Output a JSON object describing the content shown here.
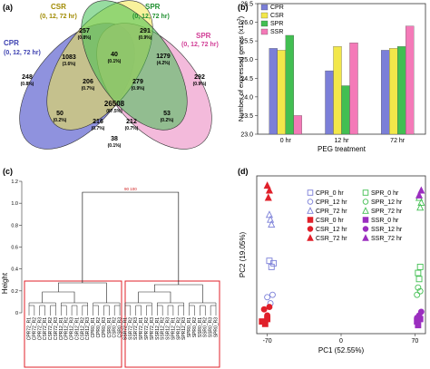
{
  "colors": {
    "cpr": "#7b7fd8",
    "csr": "#f2e74a",
    "spr": "#42bf52",
    "ssr": "#f47ab8",
    "red": "#e0202a",
    "purple": "#9b2fbf"
  },
  "panel_a": {
    "label": "(a)",
    "sets": [
      {
        "name": "CPR",
        "sub": "(0, 12, 72 hr)"
      },
      {
        "name": "CSR",
        "sub": "(0, 12, 72 hr)"
      },
      {
        "name": "SPR",
        "sub": "(0, 12, 72 hr)"
      },
      {
        "name": "SPR",
        "sub": "(0, 12, 72 hr)"
      }
    ],
    "regions": [
      {
        "n": "248",
        "p": "(0.8%)"
      },
      {
        "n": "1083",
        "p": "(3.6%)"
      },
      {
        "n": "257",
        "p": "(0.8%)"
      },
      {
        "n": "40",
        "p": "(0.1%)"
      },
      {
        "n": "291",
        "p": "(0.9%)"
      },
      {
        "n": "1279",
        "p": "(4.2%)"
      },
      {
        "n": "292",
        "p": "(0.9%)"
      },
      {
        "n": "206",
        "p": "(0.7%)"
      },
      {
        "n": "279",
        "p": "(0.9%)"
      },
      {
        "n": "26508",
        "p": "(87.5%)"
      },
      {
        "n": "50",
        "p": "(0.2%)"
      },
      {
        "n": "216",
        "p": "(0.7%)"
      },
      {
        "n": "212",
        "p": "(0.7%)"
      },
      {
        "n": "53",
        "p": "(0.2%)"
      },
      {
        "n": "38",
        "p": "(0.1%)"
      }
    ]
  },
  "panel_b": {
    "label": "(b)"
  },
  "panel_c": {
    "label": "(c)"
  },
  "panel_d": {
    "label": "(d)"
  },
  "chart_data": [
    {
      "type": "bar",
      "title": "",
      "xlabel": "PEG treatment",
      "ylabel": "Number of expressed genes (x10³)",
      "ylabel_main": "Number of expressed genes (x10",
      "ylabel_sup": "3",
      "ylabel_end": ")",
      "categories": [
        "0 hr",
        "12 hr",
        "72 hr"
      ],
      "series": [
        {
          "name": "CPR",
          "values": [
            25.3,
            24.7,
            25.25
          ]
        },
        {
          "name": "CSR",
          "values": [
            25.25,
            25.35,
            25.3
          ]
        },
        {
          "name": "SPR",
          "values": [
            25.65,
            24.3,
            25.35
          ]
        },
        {
          "name": "SSR",
          "values": [
            23.5,
            25.45,
            25.9
          ]
        }
      ],
      "ylim": [
        23.0,
        26.5
      ],
      "yticks": [
        "23.0",
        "23.5",
        "24.0",
        "24.5",
        "25.0",
        "25.5",
        "26.0",
        "26.5"
      ],
      "legend": "top-left"
    },
    {
      "type": "dendrogram",
      "ylabel": "Height",
      "ylim": [
        0,
        1.2
      ],
      "yticks": [
        "0",
        "0.2",
        "0.4",
        "0.6",
        "0.8",
        "1.0",
        "1.2"
      ],
      "root_label": "90 100",
      "leaves": [
        "CPR72_R1",
        "CPR72_R2",
        "CPR72_R3",
        "CSR72_R1",
        "CSR72_R2",
        "CSR72_R3",
        "CPR12_R1",
        "CPR12_R2",
        "CPR12_R3",
        "CSR12_R1",
        "CSR12_R2",
        "CSR12_R3",
        "CPR0_R1",
        "CPR0_R2",
        "CPR0_R3",
        "CSR0_R1",
        "CSR0_R2",
        "CSR0_R3",
        "SSR72_R1",
        "SSR72_R2",
        "SSR72_R3",
        "SPR72_R1",
        "SPR72_R2",
        "SPR72_R3",
        "SSR12_R1",
        "SSR12_R2",
        "SSR12_R3",
        "SPR12_R1",
        "SPR12_R2",
        "SPR12_R3",
        "SPR0_R1",
        "SPR0_R2",
        "SSR0_R1",
        "SSR0_R2",
        "SSR0_R3",
        "SPR0_R3"
      ]
    },
    {
      "type": "scatter",
      "xlabel": "PC1 (52.55%)",
      "ylabel": "PC2 (19.05%)",
      "xlim": [
        -80,
        80
      ],
      "ylim": [
        -50,
        80
      ],
      "xticks": [
        "-70",
        "0",
        "70"
      ],
      "legend": "top-center",
      "series": [
        {
          "name": "CPR_0 hr",
          "marker": "square-open",
          "color": "#7b7fd8",
          "points": [
            [
              -68,
              10
            ],
            [
              -66,
              5
            ],
            [
              -64,
              8
            ]
          ]
        },
        {
          "name": "CPR_12 hr",
          "marker": "circle-open",
          "color": "#7b7fd8",
          "points": [
            [
              -70,
              -20
            ],
            [
              -67,
              -25
            ],
            [
              -65,
              -18
            ]
          ]
        },
        {
          "name": "CPR_72 hr",
          "marker": "triangle-open",
          "color": "#7b7fd8",
          "points": [
            [
              -68,
              48
            ],
            [
              -66,
              40
            ],
            [
              -67,
              44
            ]
          ]
        },
        {
          "name": "CSR_0 hr",
          "marker": "square",
          "color": "#e0202a",
          "points": [
            [
              -75,
              -40
            ],
            [
              -72,
              -42
            ],
            [
              -70,
              -38
            ]
          ]
        },
        {
          "name": "CSR_12 hr",
          "marker": "circle",
          "color": "#e0202a",
          "points": [
            [
              -73,
              -30
            ],
            [
              -70,
              -35
            ],
            [
              -68,
              -28
            ]
          ]
        },
        {
          "name": "CSR_72 hr",
          "marker": "triangle",
          "color": "#e0202a",
          "points": [
            [
              -70,
              72
            ],
            [
              -68,
              68
            ],
            [
              -69,
              62
            ]
          ]
        },
        {
          "name": "SPR_0 hr",
          "marker": "square-open",
          "color": "#42bf52",
          "points": [
            [
              73,
              0
            ],
            [
              75,
              5
            ],
            [
              74,
              -5
            ]
          ]
        },
        {
          "name": "SPR_12 hr",
          "marker": "circle-open",
          "color": "#42bf52",
          "points": [
            [
              72,
              -18
            ],
            [
              75,
              -15
            ],
            [
              73,
              -12
            ]
          ]
        },
        {
          "name": "SPR_72 hr",
          "marker": "triangle-open",
          "color": "#42bf52",
          "points": [
            [
              74,
              62
            ],
            [
              76,
              58
            ],
            [
              75,
              54
            ]
          ]
        },
        {
          "name": "SSR_0 hr",
          "marker": "square",
          "color": "#9b2fbf",
          "points": [
            [
              72,
              -40
            ],
            [
              75,
              -38
            ],
            [
              73,
              -43
            ]
          ]
        },
        {
          "name": "SSR_12 hr",
          "marker": "circle",
          "color": "#9b2fbf",
          "points": [
            [
              74,
              -35
            ],
            [
              72,
              -37
            ],
            [
              76,
              -32
            ]
          ]
        },
        {
          "name": "SSR_72 hr",
          "marker": "triangle",
          "color": "#9b2fbf",
          "points": [
            [
              76,
              68
            ],
            [
              74,
              64
            ]
          ]
        }
      ]
    }
  ]
}
